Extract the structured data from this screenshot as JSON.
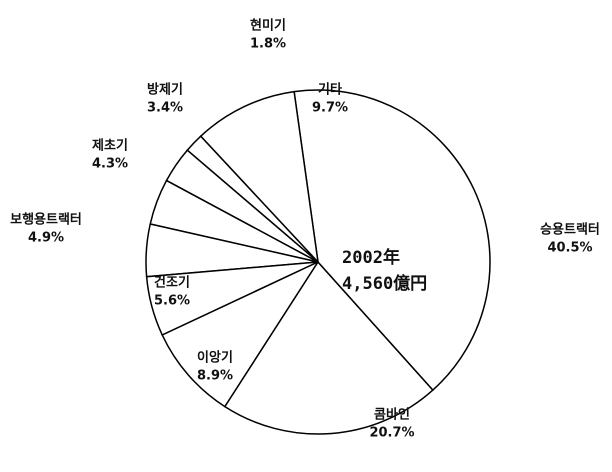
{
  "chart_data": {
    "type": "pie",
    "categories": [
      "기타",
      "승용트랙터",
      "콤바인",
      "이앙기",
      "건조기",
      "보행용트랙터",
      "제초기",
      "방제기",
      "현미기"
    ],
    "values": [
      9.7,
      40.5,
      20.7,
      8.9,
      5.6,
      4.9,
      4.3,
      3.4,
      1.8
    ],
    "value_labels": [
      "9.7%",
      "40.5%",
      "20.7%",
      "8.9%",
      "5.6%",
      "4.9%",
      "4.3%",
      "3.4%",
      "1.8%"
    ],
    "annotations": [
      "2002年",
      "4,560億円"
    ],
    "color": "#ffffff",
    "edge_color": "#000000"
  }
}
